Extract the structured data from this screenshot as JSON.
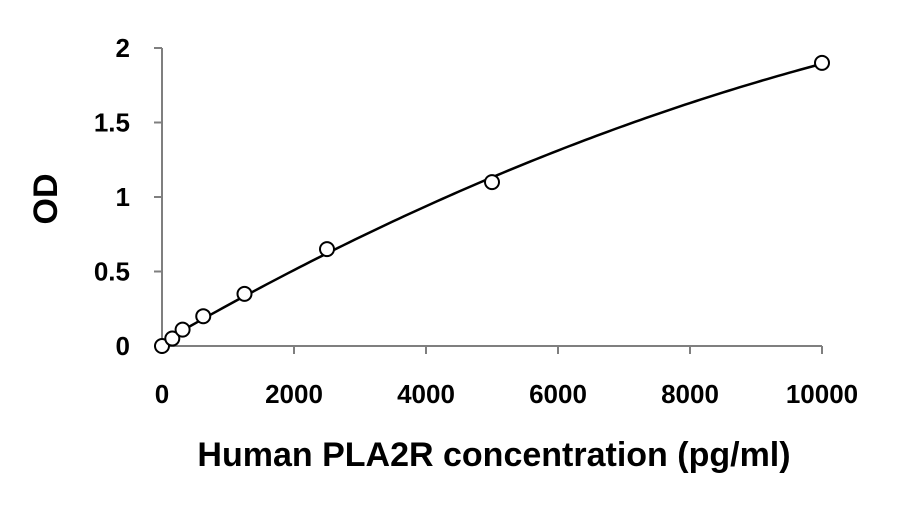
{
  "chart_data": {
    "type": "scatter",
    "title": "",
    "xlabel": "Human PLA2R concentration (pg/ml)",
    "ylabel": "OD",
    "xlim": [
      0,
      10000
    ],
    "ylim": [
      0,
      2
    ],
    "x_ticks": [
      0,
      2000,
      4000,
      6000,
      8000,
      10000
    ],
    "y_ticks": [
      0,
      0.5,
      1,
      1.5,
      2
    ],
    "grid": false,
    "legend": "none",
    "series": [
      {
        "marker": "open-circle",
        "line": "smooth-fit",
        "points": [
          {
            "x": 0,
            "y": 0.0
          },
          {
            "x": 156,
            "y": 0.05
          },
          {
            "x": 312,
            "y": 0.11
          },
          {
            "x": 625,
            "y": 0.2
          },
          {
            "x": 1250,
            "y": 0.35
          },
          {
            "x": 2500,
            "y": 0.65
          },
          {
            "x": 5000,
            "y": 1.1
          },
          {
            "x": 10000,
            "y": 1.9
          }
        ]
      }
    ],
    "colors": {
      "axis": "#7f7f7f",
      "text": "#000000",
      "curve": "#000000",
      "marker_fill": "#ffffff"
    }
  }
}
